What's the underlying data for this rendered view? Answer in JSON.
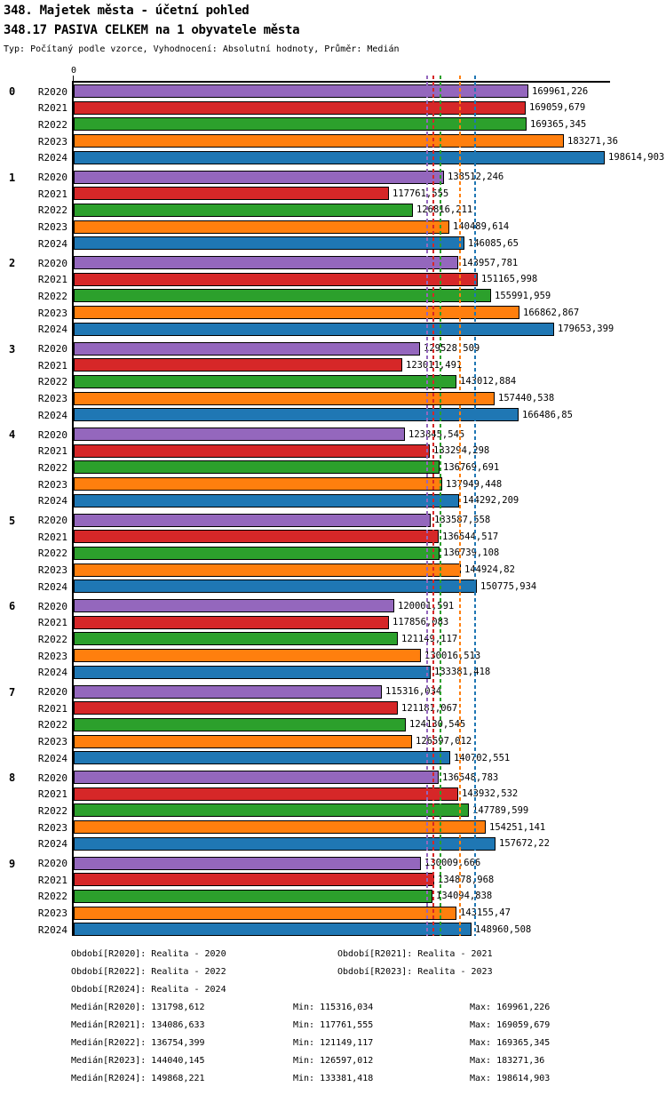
{
  "header": {
    "title": "348. Majetek města - účetní pohled",
    "subtitle": "348.17 PASIVA CELKEM na 1 obyvatele města",
    "meta": "Typ: Počítaný podle vzorce, Vyhodnocení: Absolutní hodnoty, Průměr: Medián"
  },
  "chart_data": {
    "type": "bar",
    "orientation": "horizontal",
    "zero_label": "0",
    "xlim": [
      0,
      200000
    ],
    "grid": false,
    "legend_position": "none",
    "series_years": [
      "R2020",
      "R2021",
      "R2022",
      "R2023",
      "R2024"
    ],
    "colors": {
      "R2020": "#9467bd",
      "R2021": "#d62728",
      "R2022": "#2ca02c",
      "R2023": "#ff7f0e",
      "R2024": "#1f77b4"
    },
    "groups": [
      {
        "label": "0",
        "bars": [
          {
            "year": "R2020",
            "value": 169961.226,
            "display": "169961,226"
          },
          {
            "year": "R2021",
            "value": 169059.679,
            "display": "169059,679"
          },
          {
            "year": "R2022",
            "value": 169365.345,
            "display": "169365,345"
          },
          {
            "year": "R2023",
            "value": 183271.36,
            "display": "183271,36"
          },
          {
            "year": "R2024",
            "value": 198614.903,
            "display": "198614,903"
          }
        ]
      },
      {
        "label": "1",
        "bars": [
          {
            "year": "R2020",
            "value": 138512.246,
            "display": "138512,246"
          },
          {
            "year": "R2021",
            "value": 117761.555,
            "display": "117761,555"
          },
          {
            "year": "R2022",
            "value": 126816.211,
            "display": "126816,211"
          },
          {
            "year": "R2023",
            "value": 140489.614,
            "display": "140489,614"
          },
          {
            "year": "R2024",
            "value": 146085.65,
            "display": "146085,65"
          }
        ]
      },
      {
        "label": "2",
        "bars": [
          {
            "year": "R2020",
            "value": 143957.781,
            "display": "143957,781"
          },
          {
            "year": "R2021",
            "value": 151165.998,
            "display": "151165,998"
          },
          {
            "year": "R2022",
            "value": 155991.959,
            "display": "155991,959"
          },
          {
            "year": "R2023",
            "value": 166862.867,
            "display": "166862,867"
          },
          {
            "year": "R2024",
            "value": 179653.399,
            "display": "179653,399"
          }
        ]
      },
      {
        "label": "3",
        "bars": [
          {
            "year": "R2020",
            "value": 129528.509,
            "display": "129528,509"
          },
          {
            "year": "R2021",
            "value": 123011.491,
            "display": "123011,491"
          },
          {
            "year": "R2022",
            "value": 143012.884,
            "display": "143012,884"
          },
          {
            "year": "R2023",
            "value": 157440.538,
            "display": "157440,538"
          },
          {
            "year": "R2024",
            "value": 166486.85,
            "display": "166486,85"
          }
        ]
      },
      {
        "label": "4",
        "bars": [
          {
            "year": "R2020",
            "value": 123845.545,
            "display": "123845,545"
          },
          {
            "year": "R2021",
            "value": 133294.298,
            "display": "133294,298"
          },
          {
            "year": "R2022",
            "value": 136769.691,
            "display": "136769,691"
          },
          {
            "year": "R2023",
            "value": 137949.448,
            "display": "137949,448"
          },
          {
            "year": "R2024",
            "value": 144292.209,
            "display": "144292,209"
          }
        ]
      },
      {
        "label": "5",
        "bars": [
          {
            "year": "R2020",
            "value": 133587.558,
            "display": "133587,558"
          },
          {
            "year": "R2021",
            "value": 136544.517,
            "display": "136544,517"
          },
          {
            "year": "R2022",
            "value": 136739.108,
            "display": "136739,108"
          },
          {
            "year": "R2023",
            "value": 144924.82,
            "display": "144924,82"
          },
          {
            "year": "R2024",
            "value": 150775.934,
            "display": "150775,934"
          }
        ]
      },
      {
        "label": "6",
        "bars": [
          {
            "year": "R2020",
            "value": 120001.591,
            "display": "120001,591"
          },
          {
            "year": "R2021",
            "value": 117856.083,
            "display": "117856,083"
          },
          {
            "year": "R2022",
            "value": 121149.117,
            "display": "121149,117"
          },
          {
            "year": "R2023",
            "value": 130016.513,
            "display": "130016,513"
          },
          {
            "year": "R2024",
            "value": 133381.418,
            "display": "133381,418"
          }
        ]
      },
      {
        "label": "7",
        "bars": [
          {
            "year": "R2020",
            "value": 115316.034,
            "display": "115316,034"
          },
          {
            "year": "R2021",
            "value": 121181.067,
            "display": "121181,067"
          },
          {
            "year": "R2022",
            "value": 124130.545,
            "display": "124130,545"
          },
          {
            "year": "R2023",
            "value": 126597.012,
            "display": "126597,012"
          },
          {
            "year": "R2024",
            "value": 140702.551,
            "display": "140702,551"
          }
        ]
      },
      {
        "label": "8",
        "bars": [
          {
            "year": "R2020",
            "value": 136548.783,
            "display": "136548,783"
          },
          {
            "year": "R2021",
            "value": 143932.532,
            "display": "143932,532"
          },
          {
            "year": "R2022",
            "value": 147789.599,
            "display": "147789,599"
          },
          {
            "year": "R2023",
            "value": 154251.141,
            "display": "154251,141"
          },
          {
            "year": "R2024",
            "value": 157672.22,
            "display": "157672,22"
          }
        ]
      },
      {
        "label": "9",
        "bars": [
          {
            "year": "R2020",
            "value": 130009.666,
            "display": "130009,666"
          },
          {
            "year": "R2021",
            "value": 134878.968,
            "display": "134878,968"
          },
          {
            "year": "R2022",
            "value": 134094.838,
            "display": "134094,838"
          },
          {
            "year": "R2023",
            "value": 143155.47,
            "display": "143155,47"
          },
          {
            "year": "R2024",
            "value": 148960.508,
            "display": "148960,508"
          }
        ]
      }
    ],
    "medians": [
      {
        "year": "R2020",
        "value": 131798.612,
        "display": "131798,612"
      },
      {
        "year": "R2021",
        "value": 134086.633,
        "display": "134086,633"
      },
      {
        "year": "R2022",
        "value": 136754.399,
        "display": "136754,399"
      },
      {
        "year": "R2023",
        "value": 144040.145,
        "display": "144040,145"
      },
      {
        "year": "R2024",
        "value": 149868.221,
        "display": "149868,221"
      }
    ]
  },
  "footer": {
    "periods": [
      {
        "col1": "Období[R2020]: Realita - 2020",
        "col2": "Období[R2021]: Realita - 2021"
      },
      {
        "col1": "Období[R2022]: Realita - 2022",
        "col2": "Období[R2023]: Realita - 2023"
      },
      {
        "col1": "Období[R2024]: Realita - 2024",
        "col2": ""
      }
    ],
    "stats": [
      {
        "median": "Medián[R2020]: 131798,612",
        "min": "Min: 115316,034",
        "max": "Max: 169961,226"
      },
      {
        "median": "Medián[R2021]: 134086,633",
        "min": "Min: 117761,555",
        "max": "Max: 169059,679"
      },
      {
        "median": "Medián[R2022]: 136754,399",
        "min": "Min: 121149,117",
        "max": "Max: 169365,345"
      },
      {
        "median": "Medián[R2023]: 144040,145",
        "min": "Min: 126597,012",
        "max": "Max: 183271,36"
      },
      {
        "median": "Medián[R2024]: 149868,221",
        "min": "Min: 133381,418",
        "max": "Max: 198614,903"
      }
    ]
  }
}
